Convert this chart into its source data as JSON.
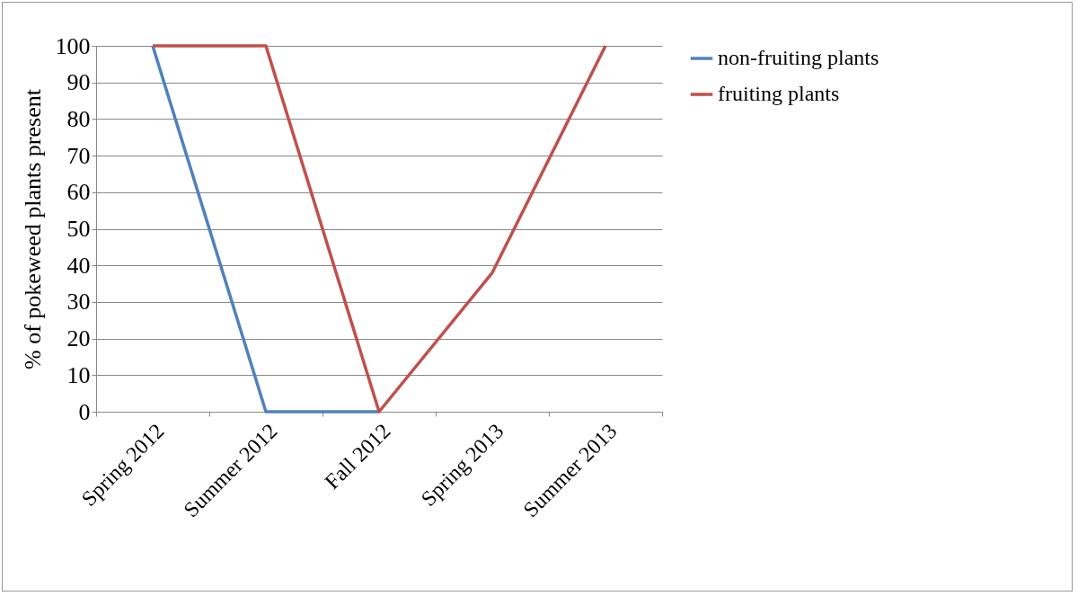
{
  "chart_data": {
    "type": "line",
    "ylabel": "% of pokeweed plants present",
    "categories": [
      "Spring 2012",
      "Summer 2012",
      "Fall 2012",
      "Spring 2013",
      "Summer 2013"
    ],
    "series": [
      {
        "name": "non-fruiting plants",
        "color": "#4f81bd",
        "values": [
          100,
          0,
          0,
          null,
          null
        ]
      },
      {
        "name": "fruiting plants",
        "color": "#c0504d",
        "values": [
          100,
          100,
          0,
          38,
          100
        ]
      }
    ],
    "ylim": [
      0,
      100
    ],
    "yticks": [
      0,
      10,
      20,
      30,
      40,
      50,
      60,
      70,
      80,
      90,
      100
    ],
    "grid": "y",
    "legend": "right",
    "marker": "none",
    "line_style": "solid"
  }
}
